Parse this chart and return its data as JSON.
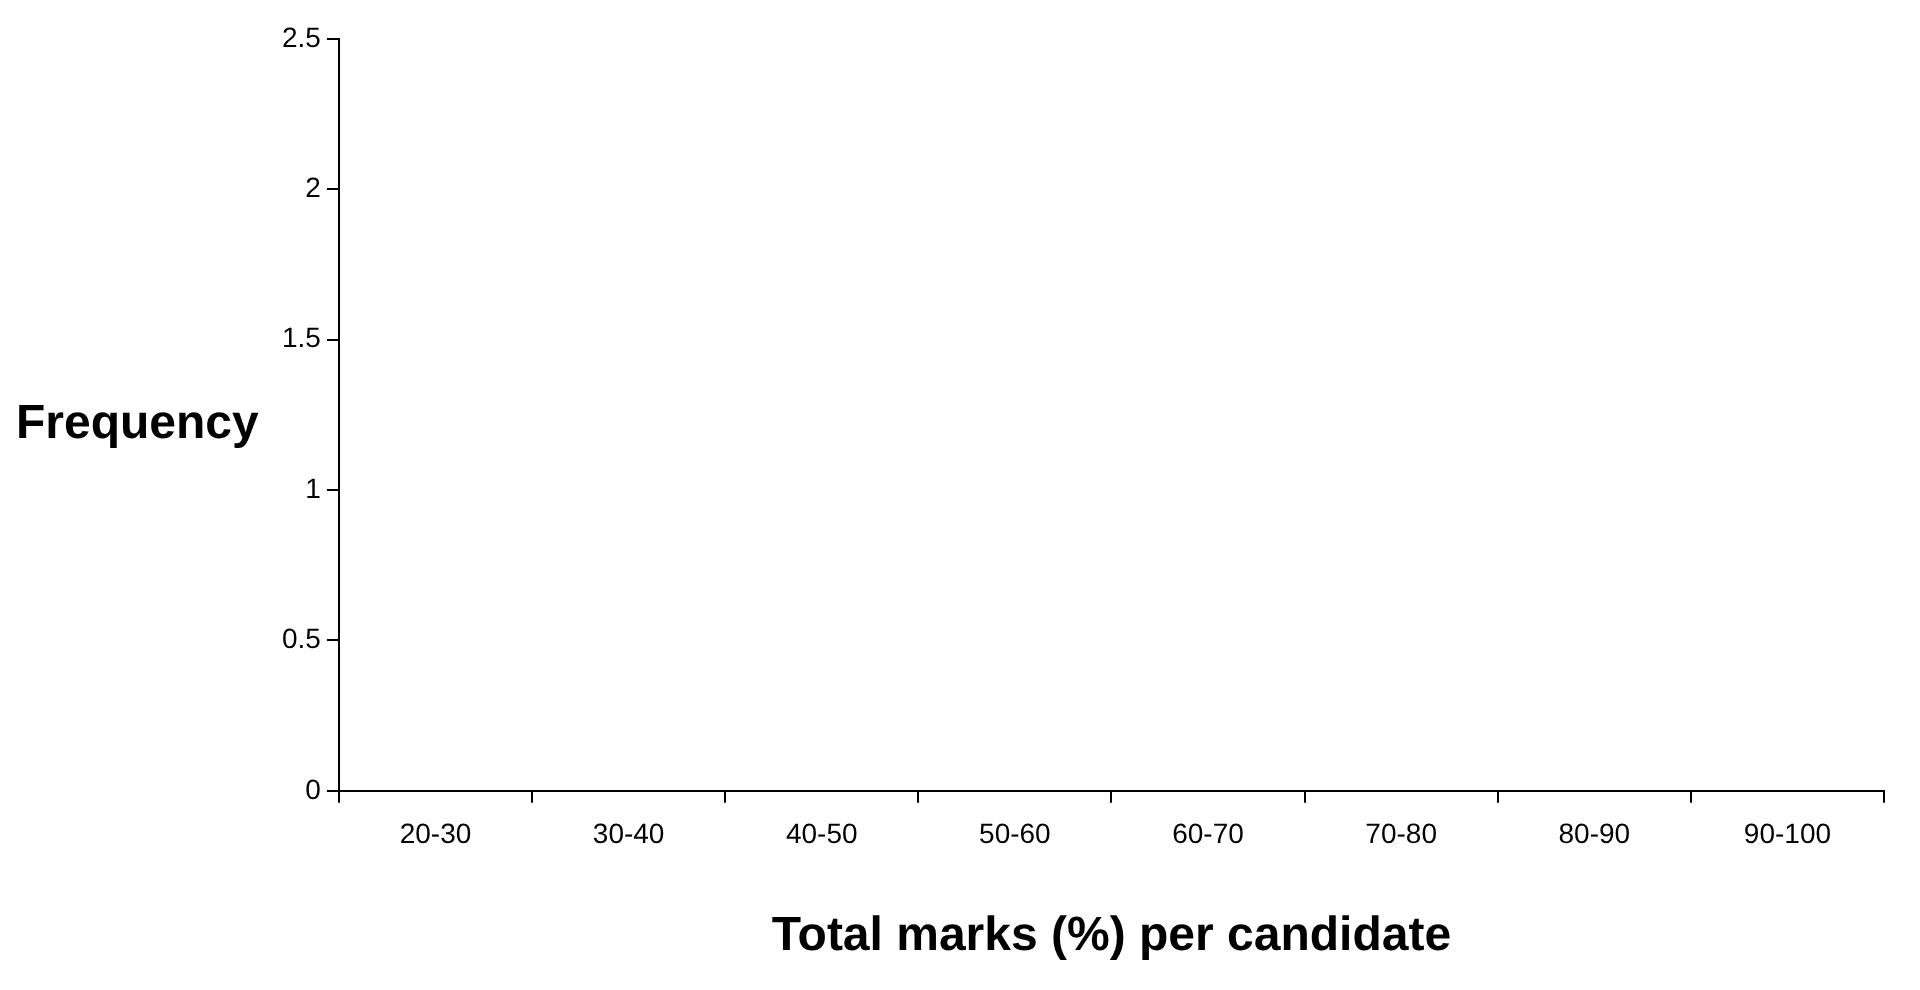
{
  "chart_data": {
    "type": "bar",
    "xlabel": "Total marks (%) per candidate",
    "ylabel": "Frequency",
    "categories": [
      "20-30",
      "30-40",
      "40-50",
      "50-60",
      "60-70",
      "70-80",
      "80-90",
      "90-100"
    ],
    "values": [
      0,
      0,
      0,
      0,
      0,
      0,
      0,
      0
    ],
    "ylim": [
      0,
      2.5
    ],
    "yticks": [
      0,
      0.5,
      1,
      1.5,
      2,
      2.5
    ],
    "grid": false,
    "legend": false
  }
}
